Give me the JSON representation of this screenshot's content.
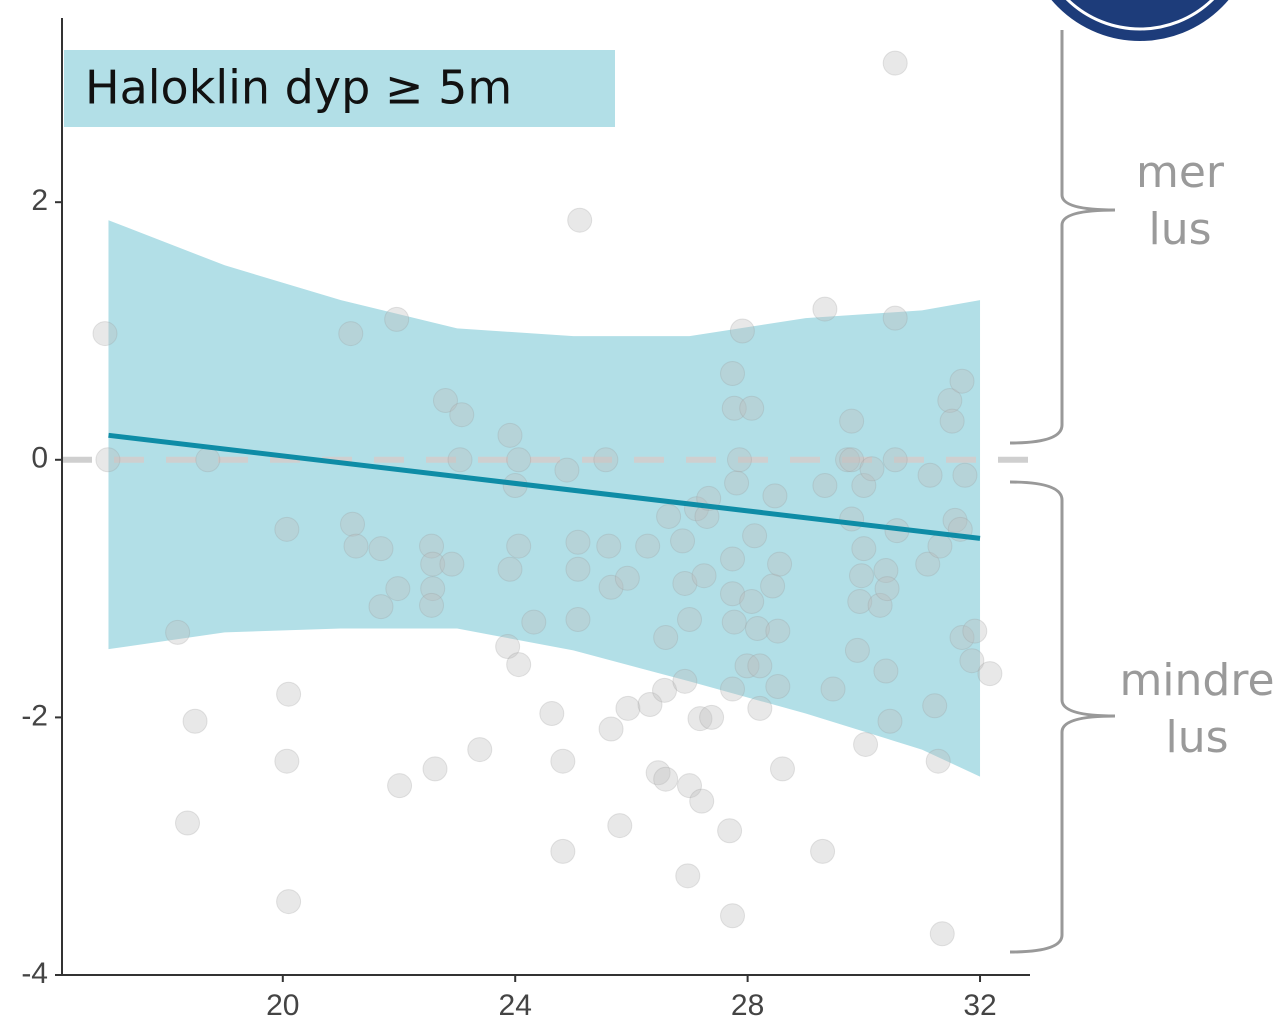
{
  "chart_data": {
    "type": "scatter",
    "label": "Haloklin dyp ≥ 5m",
    "x": [
      16.94,
      16.99,
      18.19,
      18.49,
      18.36,
      18.71,
      20.07,
      20.1,
      20.07,
      20.1,
      21.17,
      21.2,
      21.26,
      21.69,
      21.69,
      21.96,
      21.98,
      22.01,
      22.56,
      22.58,
      22.58,
      22.56,
      22.91,
      22.62,
      22.8,
      23.08,
      23.05,
      23.39,
      23.87,
      24.06,
      23.91,
      24.06,
      24.0,
      24.06,
      23.91,
      24.32,
      24.63,
      24.82,
      24.82,
      25.11,
      24.89,
      25.08,
      25.08,
      25.08,
      25.56,
      25.61,
      25.65,
      25.93,
      25.65,
      25.94,
      25.8,
      26.28,
      26.32,
      26.46,
      26.57,
      26.59,
      26.59,
      26.64,
      26.88,
      26.92,
      27.0,
      26.97,
      26.92,
      27.0,
      27.12,
      27.18,
      27.21,
      27.25,
      27.3,
      27.33,
      27.38,
      27.69,
      27.74,
      27.74,
      27.74,
      27.77,
      27.81,
      27.77,
      27.74,
      27.91,
      27.86,
      28.07,
      28.12,
      28.07,
      28.17,
      28.21,
      27.74,
      27.99,
      28.21,
      28.43,
      28.55,
      28.52,
      28.52,
      28.6,
      28.47,
      29.33,
      29.33,
      29.47,
      29.29,
      29.79,
      29.72,
      29.79,
      30.0,
      29.79,
      30.0,
      29.96,
      29.93,
      29.89,
      30.03,
      30.14,
      30.28,
      30.38,
      30.45,
      30.38,
      30.4,
      30.54,
      30.54,
      30.54,
      30.57,
      31.1,
      31.14,
      31.22,
      31.28,
      31.35,
      31.31,
      31.48,
      31.52,
      31.69,
      31.74,
      31.57,
      31.69,
      31.86,
      31.91,
      32.17,
      31.66
    ],
    "y": [
      0.98,
      0,
      -1.34,
      -2.03,
      -2.82,
      0,
      -0.54,
      -1.82,
      -2.34,
      -3.43,
      0.98,
      -0.5,
      -0.67,
      -0.69,
      -1.14,
      1.09,
      -1.0,
      -2.53,
      -0.67,
      -0.81,
      -1.0,
      -1.13,
      -0.81,
      -2.4,
      0.46,
      0.35,
      0,
      -2.25,
      -1.45,
      -1.59,
      0.19,
      0,
      -0.2,
      -0.67,
      -0.85,
      -1.26,
      -1.97,
      -2.34,
      -3.04,
      1.86,
      -0.08,
      -0.64,
      -0.85,
      -1.24,
      0,
      -0.67,
      -0.99,
      -0.92,
      -2.09,
      -1.93,
      -2.84,
      -0.67,
      -1.9,
      -2.43,
      -1.79,
      -2.48,
      -1.38,
      -0.44,
      -0.63,
      -1.72,
      -2.53,
      -3.23,
      -0.96,
      -1.24,
      -0.38,
      -2.01,
      -2.65,
      -0.9,
      -0.44,
      -0.3,
      -2.0,
      -2.88,
      -3.54,
      -0.77,
      -1.04,
      -1.26,
      -0.18,
      0.4,
      0.67,
      1.0,
      0,
      0.4,
      -0.59,
      -1.1,
      -1.31,
      -1.93,
      -1.78,
      -1.6,
      -1.6,
      -0.98,
      -0.81,
      -1.33,
      -1.76,
      -2.4,
      -0.28,
      1.17,
      -0.2,
      -1.78,
      -3.04,
      0.3,
      0,
      0,
      -0.2,
      -0.46,
      -0.69,
      -0.9,
      -1.1,
      -1.48,
      -2.21,
      -0.07,
      -1.13,
      -1.64,
      -2.03,
      -0.86,
      -1.0,
      1.1,
      3.08,
      0,
      -0.55,
      -0.81,
      -0.12,
      -1.91,
      -2.34,
      -3.68,
      -0.67,
      0.46,
      0.3,
      0.61,
      -0.12,
      -0.47,
      -1.38,
      -1.56,
      -1.33,
      -1.66,
      -0.54
    ],
    "point_color": "#bdbdbd",
    "fit": {
      "x": [
        17,
        32
      ],
      "y": [
        0.19,
        -0.61
      ],
      "color": "#0e8ca6"
    },
    "band": {
      "x": [
        17,
        19,
        21,
        23,
        25,
        27,
        29,
        31,
        32
      ],
      "upper": [
        1.86,
        1.51,
        1.24,
        1.02,
        0.96,
        0.96,
        1.1,
        1.16,
        1.24
      ],
      "lower": [
        -1.47,
        -1.34,
        -1.31,
        -1.31,
        -1.48,
        -1.72,
        -1.97,
        -2.25,
        -2.46
      ],
      "color": "#b2dfe7"
    },
    "reference_line": 0,
    "xlim": [
      16.2,
      32.86
    ],
    "ylim": [
      -4,
      3.43
    ],
    "xticks": [
      20,
      24,
      28,
      32
    ],
    "yticks": [
      -4,
      -2,
      0,
      2
    ],
    "annotations": [
      {
        "lines": [
          "mer",
          "lus"
        ]
      },
      {
        "lines": [
          "mindre",
          "lus"
        ]
      }
    ]
  }
}
